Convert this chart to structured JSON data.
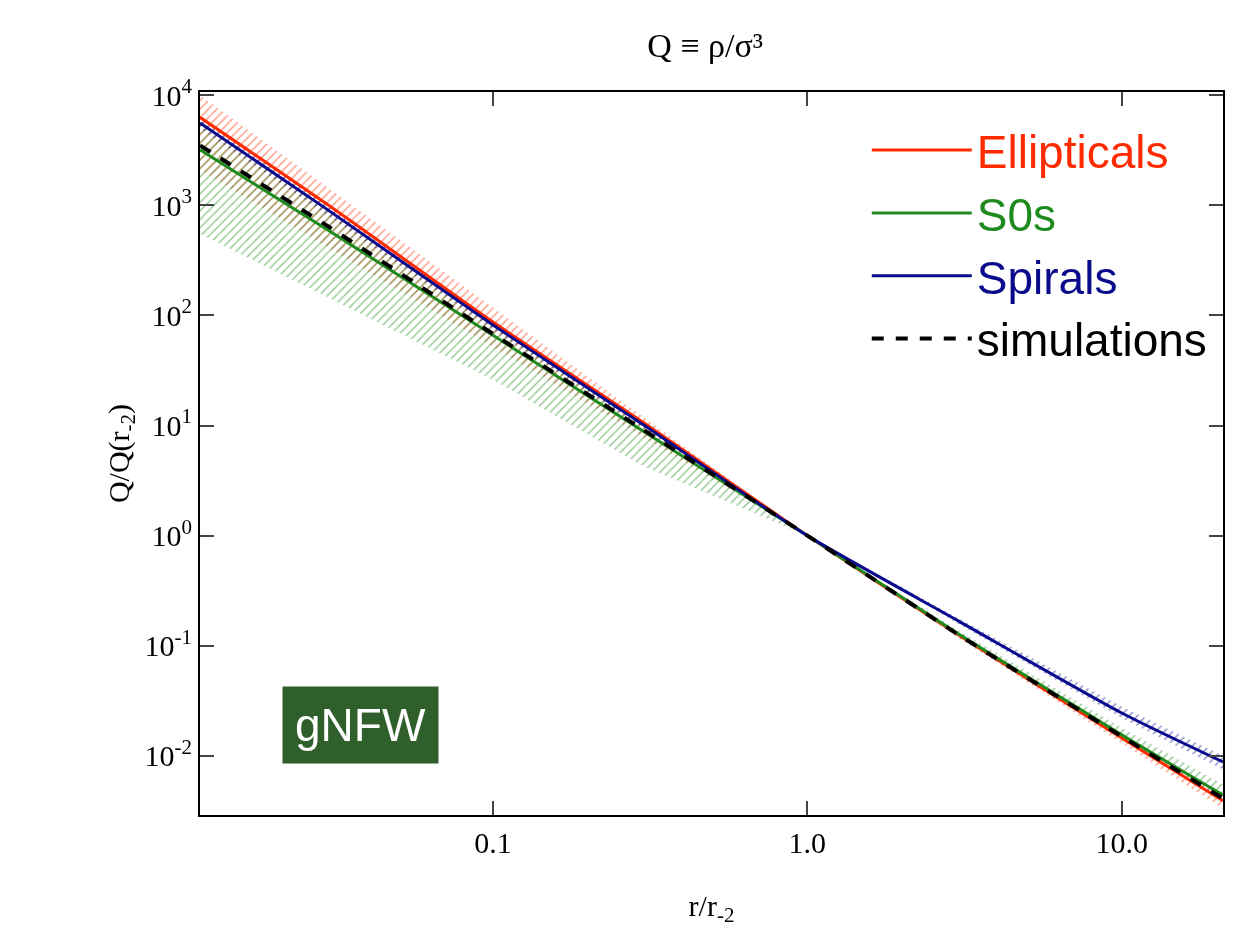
{
  "chart_data": {
    "type": "line",
    "title": "Q ≡ ρ/σ³",
    "xlabel": "r/r$_{-2}$",
    "ylabel": "Q/Q(r$_{-2}$)",
    "x": [
      0.0117,
      0.03,
      0.1,
      0.3,
      1,
      3,
      10,
      21
    ],
    "series": [
      {
        "name": "Ellipticals",
        "color": "#ff2a00",
        "values": [
          6300,
          1000,
          87,
          10.7,
          1,
          0.127,
          0.0145,
          0.0039
        ],
        "lower": [
          2100,
          415,
          52,
          7.9,
          1,
          0.12,
          0.013,
          0.0033
        ],
        "upper": [
          10000,
          1440,
          118,
          12,
          1,
          0.135,
          0.016,
          0.0042
        ]
      },
      {
        "name": "S0s",
        "color": "#1e8a1e",
        "values": [
          3200,
          590,
          66,
          8.9,
          1,
          0.13,
          0.0155,
          0.0044
        ],
        "lower": [
          550,
          145,
          26,
          4.3,
          1,
          0.12,
          0.014,
          0.004
        ],
        "upper": [
          5500,
          900,
          87,
          10.2,
          1,
          0.14,
          0.018,
          0.0055
        ]
      },
      {
        "name": "Spirals",
        "color": "#0a0a8c",
        "values": [
          5600,
          900,
          82,
          10.2,
          1,
          0.17,
          0.0245,
          0.0088
        ],
        "lower": [
          5000,
          800,
          75,
          9.6,
          1,
          0.16,
          0.022,
          0.0075
        ],
        "upper": [
          6300,
          1000,
          90,
          10.8,
          1,
          0.18,
          0.028,
          0.01
        ]
      },
      {
        "name": "simulations",
        "color": "#000000",
        "line_style": "dashed",
        "values": [
          3500,
          640,
          68,
          9.2,
          1,
          0.128,
          0.015,
          0.0041
        ]
      }
    ],
    "log": "xy",
    "xlim": [
      0.0117,
      21
    ],
    "ylim": [
      0.0029,
      10700
    ],
    "xticks": [
      {
        "value": 0.1,
        "label": "0.1"
      },
      {
        "value": 1,
        "label": "1.0"
      },
      {
        "value": 10,
        "label": "10.0"
      }
    ],
    "yticks": [
      {
        "value": 0.01,
        "label": "10$^{-2}$"
      },
      {
        "value": 0.1,
        "label": "10$^{-1}$"
      },
      {
        "value": 1,
        "label": "10$^{0}$"
      },
      {
        "value": 10,
        "label": "10$^{1}$"
      },
      {
        "value": 100,
        "label": "10$^{2}$"
      },
      {
        "value": 1000,
        "label": "10$^{3}$"
      },
      {
        "value": 10000,
        "label": "10$^{4}$"
      }
    ],
    "grid": false,
    "legend": "top right",
    "marker": "none",
    "line_style": "solid",
    "annotations": [
      "gNFW"
    ]
  }
}
